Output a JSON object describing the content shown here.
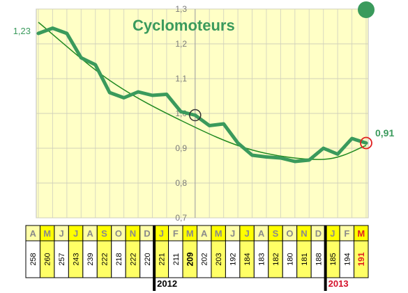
{
  "chart_data": {
    "type": "line",
    "title": "Cyclomoteurs",
    "ylim": [
      0.7,
      1.3
    ],
    "yticks": [
      "0,7",
      "0,8",
      "0,9",
      "1,0",
      "1,1",
      "1,2",
      "1,3"
    ],
    "grid": true,
    "categories": [
      "A",
      "M",
      "J",
      "J",
      "A",
      "S",
      "O",
      "N",
      "D",
      "J",
      "F",
      "M",
      "A",
      "M",
      "J",
      "J",
      "A",
      "S",
      "O",
      "N",
      "D",
      "J",
      "F",
      "M"
    ],
    "values": [
      1.23,
      1.245,
      1.23,
      1.16,
      1.14,
      1.06,
      1.045,
      1.062,
      1.052,
      1.055,
      1.005,
      0.995,
      0.965,
      0.97,
      0.915,
      0.88,
      0.875,
      0.872,
      0.862,
      0.866,
      0.9,
      0.883,
      0.928,
      0.915
    ],
    "trend_x": [
      0,
      5,
      10,
      15,
      20,
      23
    ],
    "trend_values": [
      1.262,
      1.095,
      0.98,
      0.895,
      0.868,
      0.908
    ],
    "counts": [
      "258",
      "260",
      "257",
      "243",
      "239",
      "222",
      "218",
      "222",
      "220",
      "221",
      "211",
      "209",
      "202",
      "203",
      "192",
      "184",
      "183",
      "182",
      "180",
      "181",
      "188",
      "185",
      "194",
      "191"
    ],
    "years": [
      {
        "label": "2012",
        "start_index": 9,
        "color": "#000000"
      },
      {
        "label": "2013",
        "start_index": 21,
        "color": "#d4102a"
      }
    ],
    "annotations": {
      "start_value": "1,23",
      "end_value": "0,91"
    },
    "highlighted_indices": [
      11,
      23
    ],
    "colors": {
      "plot_bg": "#ffffc6",
      "line": "#3a9a5c",
      "trend": "#218a21",
      "highlight": "#e02020",
      "month_header_alt": "#ffff00",
      "month_header": "#ffffa8",
      "value_col_alt": "#ffff66"
    }
  }
}
